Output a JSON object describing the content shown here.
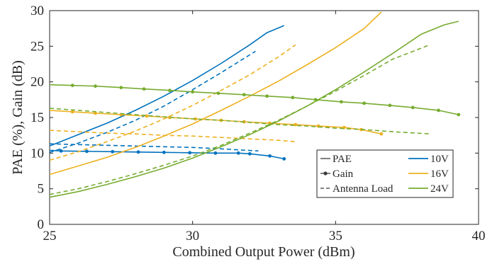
{
  "chart_data": {
    "type": "line",
    "title": "",
    "xlabel": "Combined Output Power (dBm)",
    "ylabel": "PAE (%), Gain (dB)",
    "xlim": [
      25,
      40
    ],
    "ylim": [
      0,
      30
    ],
    "xticks": [
      25,
      30,
      35,
      40
    ],
    "yticks": [
      0,
      5,
      10,
      15,
      20,
      25,
      30
    ],
    "grid": false,
    "legend_position": "bottom-right",
    "legend": {
      "styles": [
        {
          "label": "PAE",
          "marker": "line"
        },
        {
          "label": "Gain",
          "marker": "dot"
        },
        {
          "label": "Antenna Load",
          "marker": "dashed"
        }
      ],
      "voltages": [
        {
          "label": "10V",
          "color": "#0072BD"
        },
        {
          "label": "16V",
          "color": "#EDB120"
        },
        {
          "label": "24V",
          "color": "#77AC30"
        }
      ]
    },
    "series": [
      {
        "voltage": "10V",
        "kind": "PAE",
        "color": "#0072BD",
        "x": [
          25,
          26,
          27,
          28,
          29,
          30,
          31,
          32,
          32.6,
          33.2
        ],
        "y": [
          11.0,
          12.6,
          14.2,
          16.0,
          18.0,
          20.2,
          22.6,
          25.2,
          26.9,
          27.9
        ]
      },
      {
        "voltage": "10V",
        "kind": "PAE Antenna Load",
        "color": "#0072BD",
        "x": [
          25,
          26,
          27,
          28,
          29,
          30,
          31,
          32.2
        ],
        "y": [
          10.1,
          11.4,
          12.9,
          14.6,
          16.6,
          18.9,
          21.3,
          24.3
        ]
      },
      {
        "voltage": "10V",
        "kind": "Gain",
        "color": "#0072BD",
        "x": [
          25,
          25.4,
          26.3,
          27.2,
          28.1,
          29.0,
          29.9,
          30.8,
          31.6,
          32.0,
          32.7,
          33.2
        ],
        "y": [
          10.4,
          10.3,
          10.25,
          10.2,
          10.15,
          10.1,
          10.05,
          10.0,
          10.0,
          9.9,
          9.6,
          9.2
        ]
      },
      {
        "voltage": "10V",
        "kind": "Gain Antenna Load",
        "color": "#0072BD",
        "x": [
          25,
          26,
          27,
          28,
          29,
          30,
          31,
          32.3
        ],
        "y": [
          11.3,
          11.2,
          11.1,
          11.0,
          10.9,
          10.8,
          10.6,
          10.3
        ]
      },
      {
        "voltage": "16V",
        "kind": "PAE",
        "color": "#EDB120",
        "x": [
          25,
          26,
          27,
          28,
          29,
          30,
          31,
          32,
          33,
          34,
          35,
          36,
          36.6
        ],
        "y": [
          7.0,
          8.2,
          9.4,
          10.8,
          12.4,
          14.1,
          16.0,
          18.0,
          20.1,
          22.4,
          24.8,
          27.5,
          29.8
        ]
      },
      {
        "voltage": "16V",
        "kind": "PAE Antenna Load",
        "color": "#EDB120",
        "x": [
          25,
          26,
          27,
          28,
          29,
          30,
          31,
          32,
          33,
          33.6
        ],
        "y": [
          9.0,
          10.2,
          11.6,
          13.1,
          14.8,
          16.7,
          18.8,
          21.0,
          23.5,
          25.2
        ]
      },
      {
        "voltage": "16V",
        "kind": "Gain",
        "color": "#EDB120",
        "x": [
          25,
          25.8,
          26.6,
          27.5,
          28.4,
          29.2,
          30.1,
          31.0,
          31.8,
          32.7,
          33.6,
          34.4,
          35.3,
          35.9,
          36.6
        ],
        "y": [
          16.0,
          15.8,
          15.6,
          15.4,
          15.2,
          15.0,
          14.8,
          14.6,
          14.4,
          14.2,
          14.0,
          13.8,
          13.6,
          13.3,
          12.7
        ]
      },
      {
        "voltage": "16V",
        "kind": "Gain Antenna Load",
        "color": "#EDB120",
        "x": [
          25,
          26,
          27,
          28,
          29,
          30,
          31,
          32,
          33,
          33.6
        ],
        "y": [
          13.2,
          13.0,
          12.8,
          12.7,
          12.5,
          12.4,
          12.2,
          12.0,
          11.8,
          11.6
        ]
      },
      {
        "voltage": "24V",
        "kind": "PAE",
        "color": "#77AC30",
        "x": [
          25,
          26,
          27,
          28,
          29,
          30,
          31,
          32,
          33,
          34,
          35,
          36,
          37,
          38,
          38.8,
          39.3
        ],
        "y": [
          3.8,
          4.6,
          5.6,
          6.7,
          7.9,
          9.3,
          10.9,
          12.6,
          14.5,
          16.6,
          18.9,
          21.4,
          24.0,
          26.7,
          28.0,
          28.5
        ]
      },
      {
        "voltage": "24V",
        "kind": "PAE Antenna Load",
        "color": "#77AC30",
        "x": [
          25,
          26,
          27,
          28,
          29,
          30,
          31,
          32,
          33,
          34,
          35,
          36,
          37,
          38.3
        ],
        "y": [
          4.2,
          5.0,
          6.0,
          7.1,
          8.3,
          9.6,
          11.1,
          12.8,
          14.6,
          16.6,
          18.7,
          20.9,
          23.2,
          25.2
        ]
      },
      {
        "voltage": "24V",
        "kind": "Gain",
        "color": "#77AC30",
        "x": [
          25,
          25.8,
          26.6,
          27.5,
          28.3,
          29.2,
          30.0,
          30.9,
          31.8,
          32.6,
          33.5,
          34.3,
          35.2,
          36.0,
          36.9,
          37.7,
          38.6,
          39.3
        ],
        "y": [
          19.6,
          19.5,
          19.4,
          19.2,
          19.0,
          18.8,
          18.6,
          18.4,
          18.2,
          18.0,
          17.8,
          17.5,
          17.2,
          17.0,
          16.7,
          16.4,
          16.0,
          15.4
        ]
      },
      {
        "voltage": "24V",
        "kind": "Gain Antenna Load",
        "color": "#77AC30",
        "x": [
          25,
          26,
          27,
          28,
          29,
          30,
          31,
          32,
          33,
          34,
          35,
          36,
          37,
          38.3
        ],
        "y": [
          16.3,
          16.0,
          15.7,
          15.4,
          15.1,
          14.8,
          14.6,
          14.3,
          14.0,
          13.8,
          13.5,
          13.3,
          13.0,
          12.7
        ]
      }
    ]
  }
}
